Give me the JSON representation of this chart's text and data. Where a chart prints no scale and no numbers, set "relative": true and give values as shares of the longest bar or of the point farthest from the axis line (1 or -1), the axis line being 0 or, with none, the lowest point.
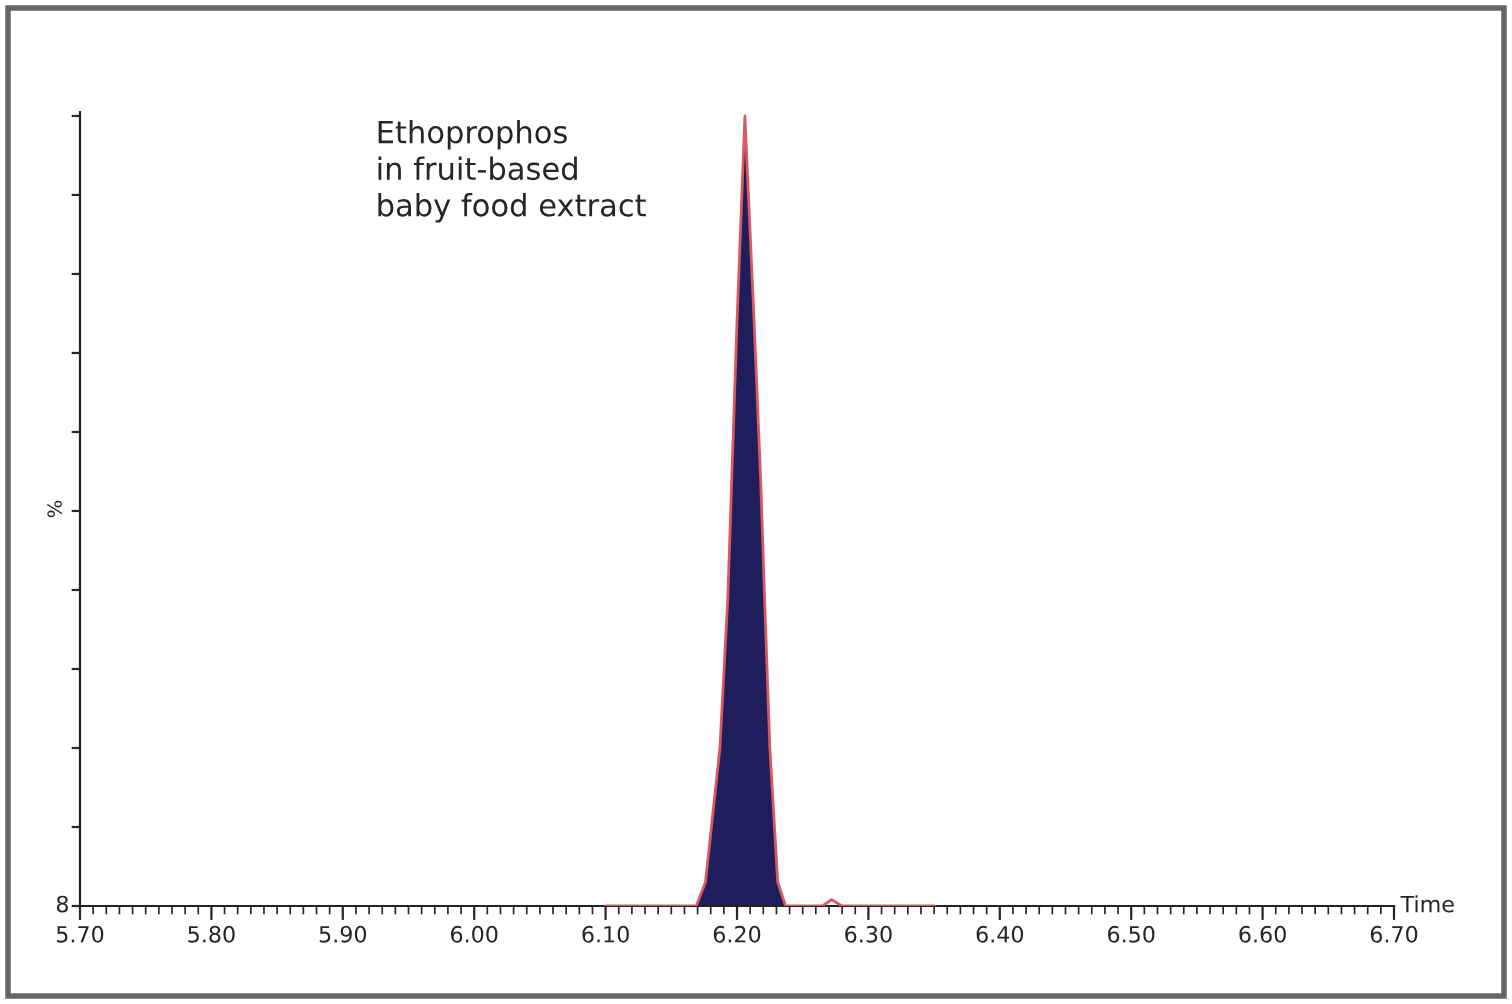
{
  "chart_data": {
    "type": "area",
    "relative": true,
    "xlabel": "Time",
    "ylabel": "%",
    "annotations": [
      "Ethoprophos\nin fruit-based\nbaby food extract",
      "8"
    ],
    "xlim": [
      5.7,
      6.7
    ],
    "xticks": [
      {
        "value": 5.7,
        "label": "5.70"
      },
      {
        "value": 5.8,
        "label": "5.80"
      },
      {
        "value": 5.9,
        "label": "5.90"
      },
      {
        "value": 6.0,
        "label": "6.00"
      },
      {
        "value": 6.1,
        "label": "6.10"
      },
      {
        "value": 6.2,
        "label": "6.20"
      },
      {
        "value": 6.3,
        "label": "6.30"
      },
      {
        "value": 6.4,
        "label": "6.40"
      },
      {
        "value": 6.5,
        "label": "6.50"
      },
      {
        "value": 6.6,
        "label": "6.60"
      },
      {
        "value": 6.7,
        "label": "6.70"
      }
    ],
    "series": [
      {
        "color": "#1f1d5c",
        "x": [
          6.169,
          6.176,
          6.187,
          6.193,
          6.196,
          6.2,
          6.206,
          6.213,
          6.218,
          6.221,
          6.225,
          6.231,
          6.237
        ],
        "values": [
          0,
          0.03,
          0.2,
          0.39,
          0.54,
          0.74,
          1.0,
          0.74,
          0.54,
          0.39,
          0.2,
          0.03,
          0
        ]
      },
      {
        "type": "line",
        "color": "#d9595f",
        "x": [
          6.1,
          6.169,
          6.176,
          6.187,
          6.193,
          6.196,
          6.2,
          6.206,
          6.213,
          6.218,
          6.221,
          6.225,
          6.231,
          6.237,
          6.265,
          6.272,
          6.28,
          6.35
        ],
        "values": [
          0,
          0,
          0.03,
          0.2,
          0.39,
          0.54,
          0.74,
          1.0,
          0.74,
          0.54,
          0.39,
          0.2,
          0.03,
          0,
          0,
          0.008,
          0,
          0
        ]
      }
    ]
  }
}
